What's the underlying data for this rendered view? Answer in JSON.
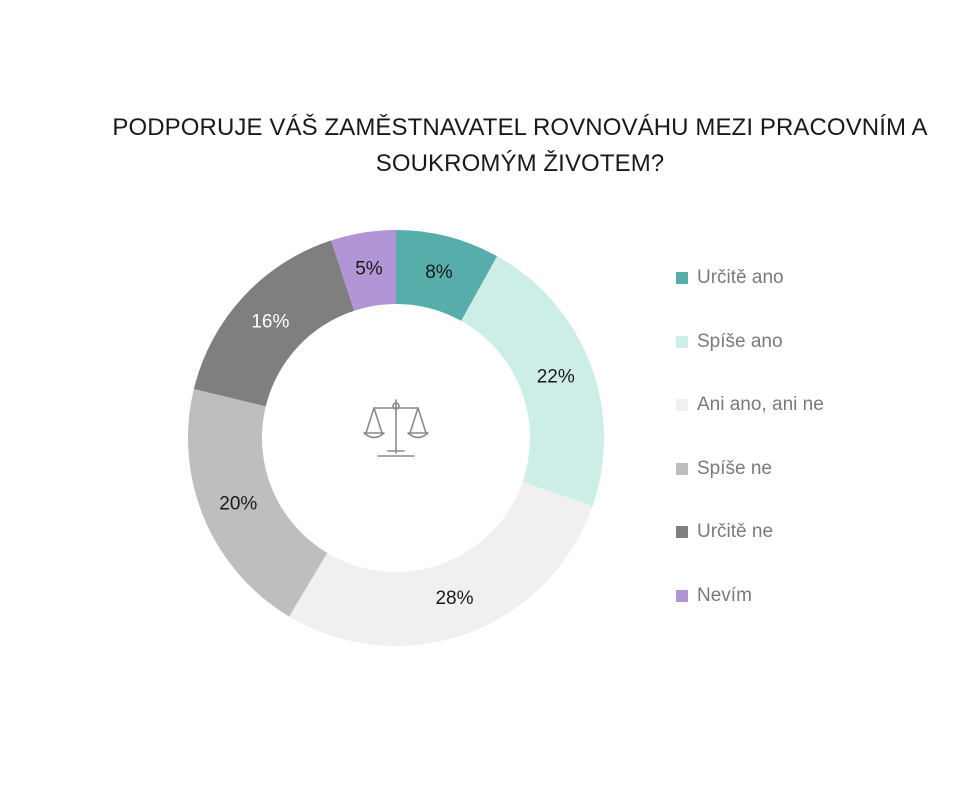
{
  "chart_data": {
    "type": "donut",
    "title": "PODPORUJE VÁŠ ZAMĚSTNAVATEL ROVNOVÁHU MEZI PRACOVNÍM A SOUKROMÝM ŽIVOTEM?",
    "title_lines": [
      "PODPORUJE VÁŠ ZAMĚSTNAVATEL ROVNOVÁHU MEZI PRACOVNÍM A",
      "SOUKROMÝM ŽIVOTEM?"
    ],
    "categories": [
      "Určitě ano",
      "Spíše ano",
      "Ani ano, ani ne",
      "Spíše ne",
      "Určitě ne",
      "Nevím"
    ],
    "values": [
      8,
      22,
      28,
      20,
      16,
      5
    ],
    "labels": [
      "8%",
      "22%",
      "28%",
      "20%",
      "16%",
      "5%"
    ],
    "colors": [
      "#56ADAA",
      "#CDEDE7",
      "#F0F0F0",
      "#BEBEBE",
      "#7F7F7F",
      "#B195D4"
    ],
    "label_colors": [
      "#1a1a1a",
      "#1a1a1a",
      "#1a1a1a",
      "#1a1a1a",
      "#ffffff",
      "#1a1a1a"
    ],
    "legend_position": "right",
    "center_icon": "balance-scale-icon"
  }
}
